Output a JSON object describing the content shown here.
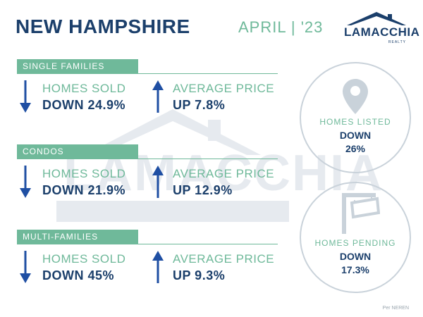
{
  "header": {
    "title": "NEW HAMPSHIRE",
    "month": "APRIL  | '23"
  },
  "logo": {
    "name": "LAMACCHIA",
    "sub": "REALTY"
  },
  "sections": [
    {
      "label": "SINGLE FAMILIES",
      "sold_label": "HOMES SOLD",
      "sold_value": "DOWN 24.9%",
      "price_label": "AVERAGE PRICE",
      "price_value": "UP 7.8%"
    },
    {
      "label": "CONDOS",
      "sold_label": "HOMES SOLD",
      "sold_value": "DOWN 21.9%",
      "price_label": "AVERAGE PRICE",
      "price_value": "UP 12.9%"
    },
    {
      "label": "MULTI-FAMILIES",
      "sold_label": "HOMES SOLD",
      "sold_value": "DOWN 45%",
      "price_label": "AVERAGE PRICE",
      "price_value": "UP 9.3%"
    }
  ],
  "circles": {
    "listed": {
      "label": "HOMES LISTED",
      "direction": "DOWN",
      "value": "26%",
      "icon": "map-pin-icon"
    },
    "pending": {
      "label": "HOMES PENDING",
      "direction": "DOWN",
      "value": "17.3%",
      "icon": "for-sale-sign-icon"
    }
  },
  "footer": {
    "source": "Per NEREN"
  },
  "colors": {
    "navy": "#1b3f6b",
    "green": "#6fb99a",
    "arrow_blue": "#1f4fa3",
    "circle_border": "#c9d2da"
  }
}
